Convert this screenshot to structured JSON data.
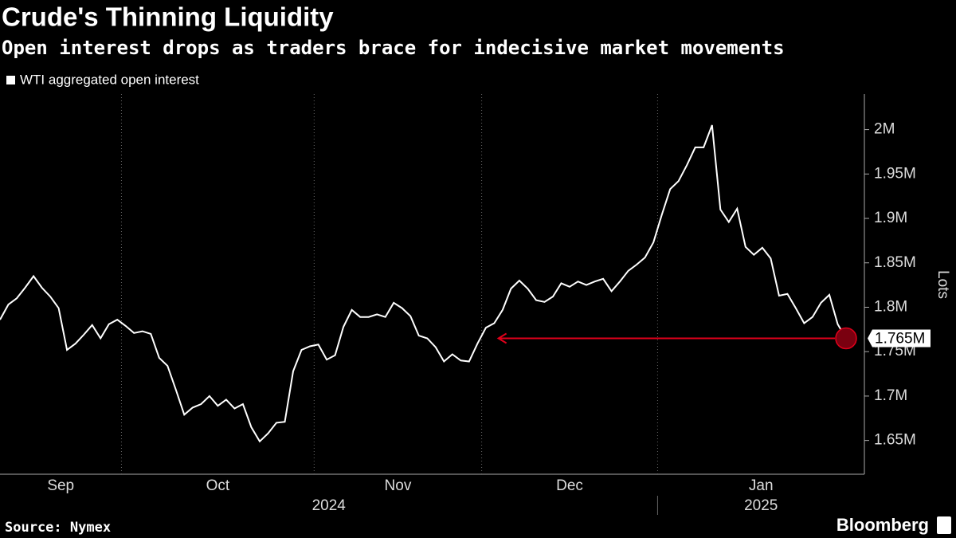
{
  "chart_data": {
    "type": "line",
    "title": "Crude's Thinning Liquidity",
    "subtitle": "Open interest drops as traders brace for indecisive market movements",
    "source": "Source: Nymex",
    "brand": "Bloomberg",
    "y_label": "Lots",
    "categories": [
      "Sep",
      null,
      null,
      null,
      null,
      null,
      null,
      null,
      null,
      null,
      null,
      null,
      null,
      null,
      null,
      "Oct",
      null,
      null,
      null,
      null,
      null,
      null,
      null,
      null,
      null,
      null,
      null,
      null,
      null,
      null,
      null,
      null,
      null,
      null,
      null,
      null,
      null,
      null,
      "Nov",
      null,
      null,
      null,
      null,
      null,
      null,
      null,
      null,
      null,
      null,
      null,
      null,
      null,
      null,
      null,
      null,
      null,
      null,
      null,
      "Dec",
      null,
      null,
      null,
      null,
      null,
      null,
      null,
      null,
      null,
      null,
      null,
      null,
      null,
      null,
      null,
      null,
      null,
      null,
      null,
      null,
      "Jan",
      null,
      null,
      null,
      null,
      null,
      null,
      null,
      null,
      null,
      null,
      null,
      null,
      null,
      null,
      null,
      null,
      null,
      null,
      null,
      null,
      null,
      null
    ],
    "year_categories": [
      "2024",
      null,
      null,
      null,
      null,
      null,
      null,
      null,
      null,
      null,
      null,
      null,
      null,
      null,
      null,
      null,
      null,
      null,
      null,
      null,
      null,
      null,
      null,
      null,
      null,
      null,
      null,
      null,
      null,
      null,
      null,
      null,
      null,
      null,
      null,
      null,
      null,
      null,
      null,
      null,
      null,
      null,
      null,
      null,
      null,
      null,
      null,
      null,
      null,
      null,
      null,
      null,
      null,
      null,
      null,
      null,
      null,
      null,
      null,
      null,
      null,
      null,
      null,
      null,
      null,
      null,
      null,
      null,
      null,
      null,
      null,
      null,
      null,
      null,
      null,
      null,
      null,
      null,
      null,
      "2025",
      null,
      null,
      null,
      null,
      null,
      null,
      null,
      null,
      null,
      null,
      null,
      null,
      null,
      null,
      null,
      null,
      null,
      null,
      null,
      null,
      null,
      null
    ],
    "series": [
      {
        "name": "WTI aggregated open interest",
        "color": "#ffffff",
        "values": [
          1786000,
          1803000,
          1810000,
          1822000,
          1835000,
          1822000,
          1812000,
          1799000,
          1752000,
          1759000,
          1769000,
          1780000,
          1765000,
          1781000,
          1786000,
          1779000,
          1771000,
          1773000,
          1770000,
          1743000,
          1734000,
          1707000,
          1679000,
          1687000,
          1691000,
          1700000,
          1689000,
          1696000,
          1686000,
          1691000,
          1665000,
          1649000,
          1658000,
          1670000,
          1671000,
          1728000,
          1752000,
          1756000,
          1758000,
          1741000,
          1746000,
          1778000,
          1797000,
          1789000,
          1789000,
          1792000,
          1789000,
          1805000,
          1799000,
          1790000,
          1768000,
          1765000,
          1755000,
          1739000,
          1747000,
          1740000,
          1739000,
          1759000,
          1777000,
          1782000,
          1797000,
          1821000,
          1830000,
          1821000,
          1808000,
          1806000,
          1812000,
          1827000,
          1823000,
          1829000,
          1825000,
          1829000,
          1832000,
          1818000,
          1829000,
          1841000,
          1848000,
          1856000,
          1873000,
          1904000,
          1933000,
          1942000,
          1960000,
          1980000,
          1980000,
          2005000,
          1910000,
          1896000,
          1911000,
          1868000,
          1859000,
          1867000,
          1855000,
          1813000,
          1815000,
          1799000,
          1782000,
          1789000,
          1805000,
          1814000,
          1781000,
          1765000
        ],
        "value_labels": [
          null,
          null,
          null,
          null,
          null,
          null,
          null,
          null,
          null,
          null,
          null,
          null,
          null,
          null,
          null,
          null,
          null,
          null,
          null,
          null,
          null,
          null,
          null,
          null,
          null,
          null,
          null,
          null,
          null,
          null,
          null,
          null,
          null,
          null,
          null,
          null,
          null,
          null,
          null,
          null,
          null,
          null,
          null,
          null,
          null,
          null,
          null,
          null,
          null,
          null,
          null,
          null,
          null,
          null,
          null,
          null,
          null,
          null,
          null,
          null,
          null,
          null,
          null,
          null,
          null,
          null,
          null,
          null,
          null,
          null,
          null,
          null,
          null,
          null,
          null,
          null,
          null,
          null,
          null,
          null,
          null,
          null,
          null,
          null,
          null,
          null,
          null,
          null,
          null,
          null,
          null,
          null,
          null,
          null,
          null,
          null,
          null,
          null,
          null,
          null,
          null,
          "1.765M"
        ]
      }
    ],
    "ylim": [
      1612000,
      2040000
    ],
    "yticks": [
      {
        "value": 1650000,
        "label": "1.65M"
      },
      {
        "value": 1700000,
        "label": "1.7M"
      },
      {
        "value": 1750000,
        "label": "1.75M"
      },
      {
        "value": 1800000,
        "label": "1.8M"
      },
      {
        "value": 1850000,
        "label": "1.85M"
      },
      {
        "value": 1900000,
        "label": "1.9M"
      },
      {
        "value": 1950000,
        "label": "1.95M"
      },
      {
        "value": 2000000,
        "label": "2M"
      }
    ],
    "highlight_color": "#e0001b",
    "grid": true
  }
}
